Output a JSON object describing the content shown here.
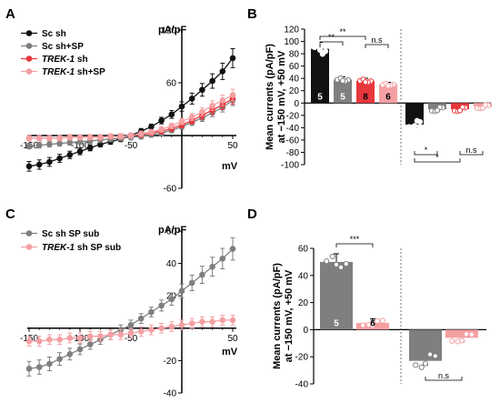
{
  "panels": [
    "A",
    "B",
    "C",
    "D"
  ],
  "colors": {
    "black": "#111111",
    "grey": "#7f7f7f",
    "red": "#e8373c",
    "pink": "#f4a0a3"
  },
  "chart_data": [
    {
      "panel": "A",
      "type": "line",
      "ylabel": "pA/pF",
      "xlabel": "mV",
      "xlim": [
        -150,
        50
      ],
      "ylim": [
        -60,
        120
      ],
      "x_ticks": [
        "-150",
        "-100",
        "-50",
        "50"
      ],
      "y_ticks": [
        "120",
        "60",
        "-60"
      ],
      "legend_position": "top-left",
      "x": [
        -150,
        -140,
        -130,
        -120,
        -110,
        -100,
        -90,
        -80,
        -70,
        -60,
        -50,
        -40,
        -30,
        -20,
        -10,
        0,
        10,
        20,
        30,
        40,
        50
      ],
      "series": [
        {
          "name": "Sc sh",
          "color": "#111111",
          "values": [
            -35,
            -33,
            -30,
            -26,
            -22,
            -18,
            -14,
            -10,
            -7,
            -4,
            0,
            5,
            10,
            17,
            24,
            33,
            42,
            52,
            62,
            73,
            88
          ]
        },
        {
          "name": "Sc sh+SP",
          "color": "#7f7f7f",
          "values": [
            -12,
            -11,
            -10,
            -9,
            -8,
            -7,
            -6,
            -5,
            -4,
            -3,
            -2,
            -1,
            1,
            3,
            6,
            10,
            15,
            20,
            26,
            32,
            40
          ]
        },
        {
          "name": "TREK-1 sh",
          "color": "#e8373c",
          "italic_prefix": "TREK-1",
          "values": [
            -3,
            -3,
            -3,
            -3,
            -2,
            -2,
            -2,
            -2,
            -1,
            -1,
            0,
            1,
            3,
            5,
            8,
            12,
            17,
            23,
            29,
            35,
            42
          ]
        },
        {
          "name": "TREK-1 sh+SP",
          "color": "#f4a0a3",
          "italic_prefix": "TREK-1",
          "values": [
            -3,
            -3,
            -3,
            -3,
            -2,
            -2,
            -2,
            -2,
            -1,
            -1,
            0,
            2,
            4,
            7,
            11,
            16,
            21,
            27,
            34,
            40,
            46
          ]
        }
      ]
    },
    {
      "panel": "B",
      "type": "bar",
      "ylabel": "Mean currents (pA/pF)\nat −150 mV, +50 mV",
      "ylim": [
        -100,
        120
      ],
      "y_ticks": [
        "120",
        "100",
        "80",
        "60",
        "40",
        "20",
        "0",
        "-20",
        "-40",
        "-60",
        "-80",
        "-100"
      ],
      "bars": [
        {
          "group": "+50 mV",
          "series": "Sc sh",
          "color": "#111111",
          "value": 88,
          "n": "5"
        },
        {
          "group": "+50 mV",
          "series": "Sc sh+SP",
          "color": "#7f7f7f",
          "value": 38,
          "n": "5"
        },
        {
          "group": "+50 mV",
          "series": "TREK-1 sh",
          "color": "#e8373c",
          "value": 36,
          "n": "8"
        },
        {
          "group": "+50 mV",
          "series": "TREK-1 sh+SP",
          "color": "#f4a0a3",
          "value": 30,
          "n": "6"
        },
        {
          "group": "-150 mV",
          "series": "Sc sh",
          "color": "#111111",
          "value": -35
        },
        {
          "group": "-150 mV",
          "series": "Sc sh+SP",
          "color": "#7f7f7f",
          "value": -10
        },
        {
          "group": "-150 mV",
          "series": "TREK-1 sh",
          "color": "#e8373c",
          "value": -10
        },
        {
          "group": "-150 mV",
          "series": "TREK-1 sh+SP",
          "color": "#f4a0a3",
          "value": -6
        }
      ],
      "significance": [
        {
          "pair": "Sc sh vs Sc sh+SP (+50 mV)",
          "label": "**"
        },
        {
          "pair": "Sc sh vs TREK-1 sh (+50 mV)",
          "label": "**"
        },
        {
          "pair": "TREK-1 sh vs TREK-1 sh+SP (+50 mV)",
          "label": "n.s"
        },
        {
          "pair": "Sc sh vs Sc sh+SP (-150 mV)",
          "label": "*"
        },
        {
          "pair": "Sc sh vs TREK-1 sh (-150 mV)",
          "label": "*"
        },
        {
          "pair": "TREK-1 sh vs TREK-1 sh+SP (-150 mV)",
          "label": "n.s"
        }
      ]
    },
    {
      "panel": "C",
      "type": "line",
      "ylabel": "pA/pF",
      "xlabel": "mV",
      "xlim": [
        -150,
        50
      ],
      "ylim": [
        -40,
        60
      ],
      "x_ticks": [
        "-150",
        "-100",
        "-50",
        "50"
      ],
      "y_ticks": [
        "60",
        "40",
        "20",
        "-20",
        "-40"
      ],
      "legend_position": "top-left",
      "x": [
        -150,
        -140,
        -130,
        -120,
        -110,
        -100,
        -90,
        -80,
        -70,
        -60,
        -50,
        -40,
        -30,
        -20,
        -10,
        0,
        10,
        20,
        30,
        40,
        50
      ],
      "series": [
        {
          "name": "Sc sh SP sub",
          "color": "#7f7f7f",
          "values": [
            -25,
            -24,
            -22,
            -19,
            -16,
            -13,
            -10,
            -7,
            -4,
            -1,
            2,
            6,
            10,
            14,
            18,
            23,
            28,
            33,
            38,
            43,
            49
          ]
        },
        {
          "name": "TREK-1 sh SP sub",
          "color": "#f4a0a3",
          "italic_prefix": "TREK-1",
          "values": [
            -8,
            -8,
            -7,
            -7,
            -6,
            -6,
            -5,
            -5,
            -4,
            -4,
            -3,
            -2,
            -1,
            0,
            1,
            2,
            3,
            4,
            4,
            5,
            5
          ]
        }
      ]
    },
    {
      "panel": "D",
      "type": "bar",
      "ylabel": "Mean currents (pA/pF)\nat −150 mV, +50 mV",
      "ylim": [
        -40,
        60
      ],
      "y_ticks": [
        "60",
        "40",
        "20",
        "0",
        "-20",
        "-40"
      ],
      "bars": [
        {
          "group": "+50 mV",
          "series": "Sc sh SP sub",
          "color": "#7f7f7f",
          "value": 50,
          "n": "5"
        },
        {
          "group": "+50 mV",
          "series": "TREK-1 sh SP sub",
          "color": "#f4a0a3",
          "value": 5,
          "n": "6"
        },
        {
          "group": "-150 mV",
          "series": "Sc sh SP sub",
          "color": "#7f7f7f",
          "value": -23
        },
        {
          "group": "-150 mV",
          "series": "TREK-1 sh SP sub",
          "color": "#f4a0a3",
          "value": -6
        }
      ],
      "significance": [
        {
          "pair": "+50 mV",
          "label": "***"
        },
        {
          "pair": "-150 mV",
          "label": "n.s"
        }
      ]
    }
  ]
}
